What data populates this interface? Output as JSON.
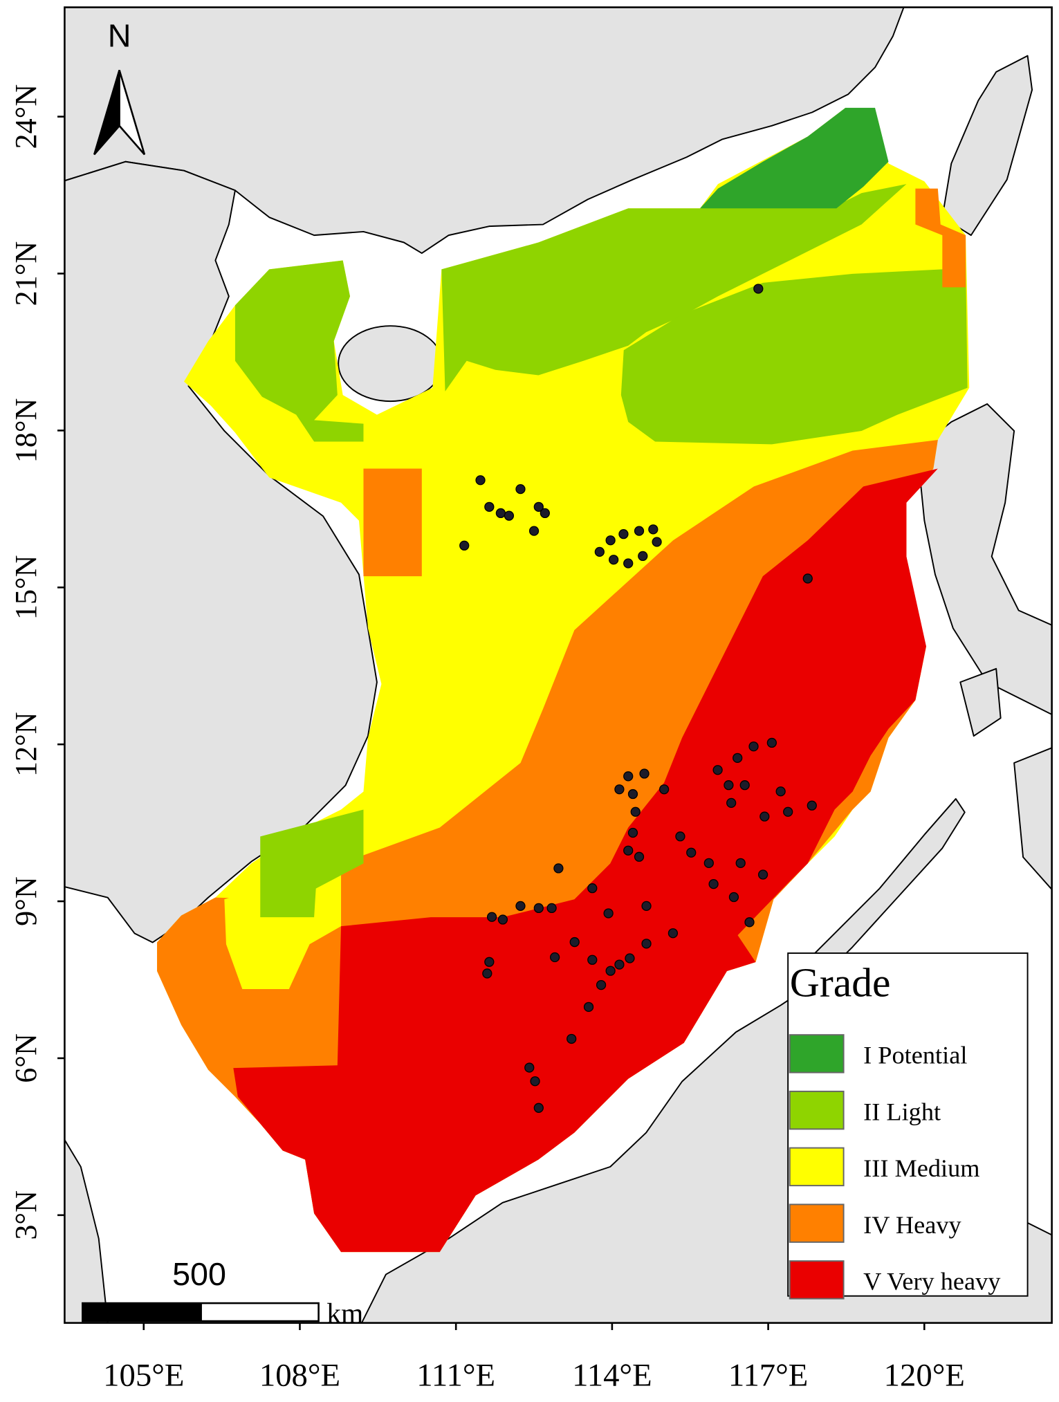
{
  "map": {
    "north": "N",
    "axes": {
      "xlim": [
        103.48,
        122.45
      ],
      "ylim": [
        0.94,
        26.09
      ],
      "xticks": [
        {
          "value": 105,
          "label": "105°E"
        },
        {
          "value": 108,
          "label": "108°E"
        },
        {
          "value": 111,
          "label": "111°E"
        },
        {
          "value": 114,
          "label": "114°E"
        },
        {
          "value": 117,
          "label": "117°E"
        },
        {
          "value": 120,
          "label": "120°E"
        }
      ],
      "yticks": [
        {
          "value": 3,
          "label": "3°N"
        },
        {
          "value": 6,
          "label": "6°N"
        },
        {
          "value": 9,
          "label": "9°N"
        },
        {
          "value": 12,
          "label": "12°N"
        },
        {
          "value": 15,
          "label": "15°N"
        },
        {
          "value": 18,
          "label": "18°N"
        },
        {
          "value": 21,
          "label": "21°N"
        },
        {
          "value": 24,
          "label": "24°N"
        }
      ]
    },
    "legend": {
      "title": "Grade",
      "items": [
        {
          "label": "I Potential",
          "color": "#2fa52a"
        },
        {
          "label": "II Light",
          "color": "#8fd400"
        },
        {
          "label": "III Medium",
          "color": "#ffff00"
        },
        {
          "label": "IV Heavy",
          "color": "#ff8000"
        },
        {
          "label": "V Very heavy",
          "color": "#ea0000"
        }
      ]
    },
    "scale_bar": {
      "value": 500,
      "unit": "km"
    },
    "points": {
      "lon": [
        111.47,
        111.64,
        111.86,
        112.24,
        112.59,
        112.71,
        112.5,
        111.16,
        112.02,
        113.76,
        113.97,
        114.22,
        114.52,
        114.79,
        114.86,
        114.59,
        114.31,
        114.03,
        117.76,
        116.81,
        114.31,
        114.4,
        114.45,
        114.4,
        114.31,
        114.52,
        114.62,
        114.14,
        115.0,
        116.03,
        116.24,
        116.41,
        116.72,
        117.07,
        116.55,
        117.24,
        117.38,
        117.84,
        116.93,
        116.29,
        111.64,
        111.6,
        112.41,
        112.52,
        112.59,
        112.97,
        113.62,
        114.14,
        114.34,
        113.97,
        113.79,
        113.55,
        113.22,
        112.24,
        111.69,
        111.9,
        112.59,
        112.84,
        113.28,
        112.9,
        115.17,
        115.31,
        115.52,
        115.86,
        115.95,
        116.34,
        116.47,
        116.9,
        116.64,
        114.66,
        114.66,
        113.93,
        113.62
      ],
      "lat": [
        17.05,
        16.54,
        16.42,
        16.88,
        16.54,
        16.42,
        16.08,
        15.8,
        16.37,
        15.68,
        15.9,
        16.02,
        16.08,
        16.11,
        15.87,
        15.6,
        15.46,
        15.53,
        15.17,
        20.71,
        11.39,
        11.05,
        10.71,
        10.31,
        9.97,
        9.85,
        11.44,
        11.14,
        11.14,
        11.51,
        11.22,
        11.74,
        11.96,
        12.03,
        11.22,
        11.1,
        10.71,
        10.83,
        10.62,
        10.88,
        7.84,
        7.62,
        5.82,
        5.56,
        5.05,
        9.63,
        9.25,
        7.79,
        7.91,
        7.67,
        7.4,
        6.98,
        6.37,
        8.91,
        8.7,
        8.65,
        8.87,
        8.87,
        8.22,
        7.93,
        8.39,
        10.24,
        9.93,
        9.73,
        9.33,
        9.08,
        9.73,
        9.51,
        8.6,
        8.91,
        8.19,
        8.77,
        7.88
      ]
    }
  }
}
